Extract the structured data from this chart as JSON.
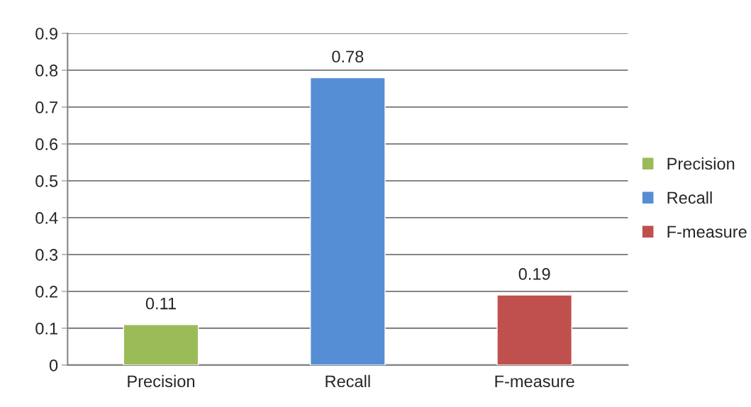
{
  "chart_data": {
    "type": "bar",
    "categories": [
      "Precision",
      "Recall",
      "F-measure"
    ],
    "series": [
      {
        "name": "Precision",
        "color": "#9bbb59",
        "values": [
          0.11,
          null,
          null
        ]
      },
      {
        "name": "Recall",
        "color": "#558ed5",
        "values": [
          null,
          0.78,
          null
        ]
      },
      {
        "name": "F-measure",
        "color": "#c0504d",
        "values": [
          null,
          null,
          0.19
        ]
      }
    ],
    "ylim": [
      0,
      0.9
    ],
    "yticks": [
      0,
      0.1,
      0.2,
      0.3,
      0.4,
      0.5,
      0.6,
      0.7,
      0.8,
      0.9
    ],
    "grid": "y",
    "legend": "right",
    "data_labels": true
  }
}
